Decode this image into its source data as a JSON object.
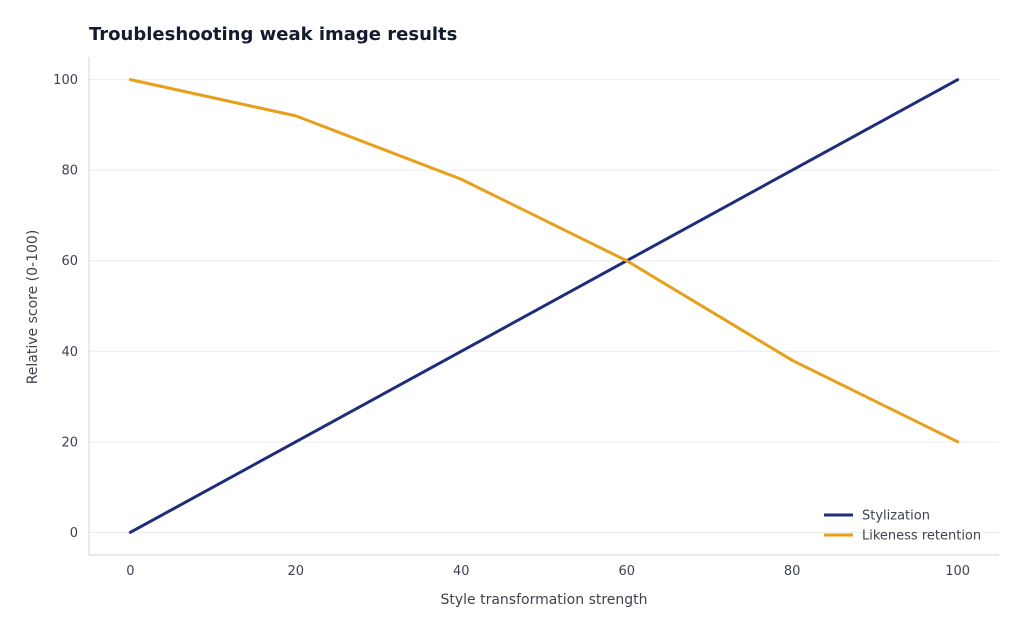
{
  "chart_data": {
    "type": "line",
    "title": "Troubleshooting weak image results",
    "xlabel": "Style transformation strength",
    "ylabel": "Relative score (0-100)",
    "x": [
      0,
      20,
      40,
      60,
      80,
      100
    ],
    "xlim": [
      -5,
      105
    ],
    "ylim": [
      -5,
      105
    ],
    "xticks": [
      0,
      20,
      40,
      60,
      80,
      100
    ],
    "yticks": [
      0,
      20,
      40,
      60,
      80,
      100
    ],
    "grid": "horizontal",
    "legend_position": "bottom-right",
    "series": [
      {
        "name": "Stylization",
        "color": "#1f2d7a",
        "values": [
          0,
          20,
          40,
          60,
          80,
          100
        ]
      },
      {
        "name": "Likeness retention",
        "color": "#e89f1a",
        "values": [
          100,
          92,
          78,
          60,
          38,
          20
        ]
      }
    ]
  }
}
